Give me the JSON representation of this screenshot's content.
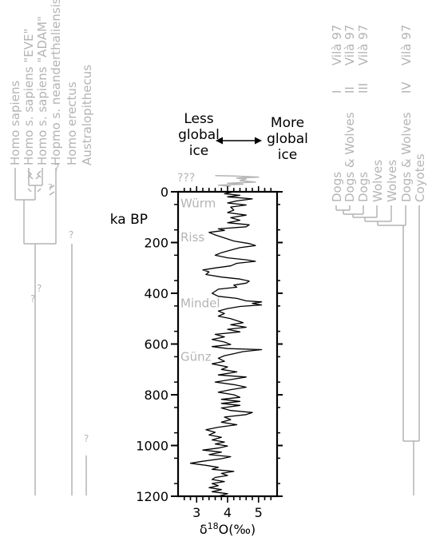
{
  "hominin_tree": {
    "taxa": [
      "Homo sapiens",
      "Homo s. sapiens \"EVE\"",
      "Homo s. sapiens \"ADAM\"",
      "Hopmo s. neanderthaliensis",
      "Homo erectus",
      "Australopithecus"
    ],
    "question_marks": [
      "?",
      "?",
      "?",
      "?",
      "?",
      "?"
    ],
    "color": "#b4b4b4"
  },
  "canid_tree": {
    "taxa": [
      {
        "name": "Dogs",
        "clade": "I",
        "ref": "Vilà 97"
      },
      {
        "name": "Dogs & Wolves",
        "clade": "II",
        "ref": "Vilà 97"
      },
      {
        "name": "Dogs",
        "clade": "III",
        "ref": "Vilà 97"
      },
      {
        "name": "Wolves",
        "clade": "",
        "ref": ""
      },
      {
        "name": "Wolves",
        "clade": "",
        "ref": ""
      },
      {
        "name": "Dogs & Wolves",
        "clade": "IV",
        "ref": "Vilà 97"
      },
      {
        "name": "Coyotes",
        "clade": "",
        "ref": ""
      }
    ],
    "color": "#b4b4b4"
  },
  "ice_annotation": {
    "less_lines": [
      "Less",
      "global",
      "ice"
    ],
    "more_lines": [
      "More",
      "global",
      "ice"
    ],
    "unknown_label": "???"
  },
  "chart_data": {
    "type": "line",
    "xlabel_prefix": "δ",
    "xlabel_sup": "18",
    "xlabel_suffix": "O(‰)",
    "ylabel": "ka BP",
    "xlim": [
      2.4,
      5.6
    ],
    "ylim": [
      0,
      1200
    ],
    "y_inverted": true,
    "xticks": [
      3,
      4,
      5
    ],
    "yticks": [
      0,
      200,
      400,
      600,
      800,
      1000,
      1200
    ],
    "glaciations": [
      {
        "label": "Würm",
        "age": 45
      },
      {
        "label": "Riss",
        "age": 180
      },
      {
        "label": "Mindel",
        "age": 440
      },
      {
        "label": "Günz",
        "age": 650
      }
    ],
    "series": [
      {
        "color": "#000000",
        "points": [
          [
            4.2,
            0
          ],
          [
            3.9,
            8
          ],
          [
            4.4,
            14
          ],
          [
            4.0,
            20
          ],
          [
            4.8,
            28
          ],
          [
            4.3,
            36
          ],
          [
            4.0,
            44
          ],
          [
            4.6,
            52
          ],
          [
            4.1,
            60
          ],
          [
            4.2,
            72
          ],
          [
            4.0,
            82
          ],
          [
            4.6,
            92
          ],
          [
            4.1,
            102
          ],
          [
            4.4,
            112
          ],
          [
            4.0,
            122
          ],
          [
            4.7,
            130
          ],
          [
            4.6,
            138
          ],
          [
            3.7,
            146
          ],
          [
            3.9,
            152
          ],
          [
            3.4,
            160
          ],
          [
            3.6,
            170
          ],
          [
            3.9,
            182
          ],
          [
            4.2,
            194
          ],
          [
            4.7,
            204
          ],
          [
            4.9,
            212
          ],
          [
            4.4,
            220
          ],
          [
            4.1,
            230
          ],
          [
            3.8,
            240
          ],
          [
            3.6,
            250
          ],
          [
            4.0,
            260
          ],
          [
            4.6,
            268
          ],
          [
            4.9,
            274
          ],
          [
            4.3,
            282
          ],
          [
            4.1,
            292
          ],
          [
            3.6,
            300
          ],
          [
            3.2,
            308
          ],
          [
            3.4,
            316
          ],
          [
            3.3,
            326
          ],
          [
            3.8,
            336
          ],
          [
            4.4,
            344
          ],
          [
            4.7,
            352
          ],
          [
            4.6,
            360
          ],
          [
            4.2,
            368
          ],
          [
            4.3,
            376
          ],
          [
            3.7,
            384
          ],
          [
            3.6,
            392
          ],
          [
            3.5,
            400
          ],
          [
            3.7,
            412
          ],
          [
            4.3,
            420
          ],
          [
            4.6,
            430
          ],
          [
            5.1,
            434
          ],
          [
            4.8,
            440
          ],
          [
            5.1,
            446
          ],
          [
            4.4,
            452
          ],
          [
            4.0,
            460
          ],
          [
            3.7,
            470
          ],
          [
            3.9,
            480
          ],
          [
            3.7,
            490
          ],
          [
            4.1,
            500
          ],
          [
            4.3,
            508
          ],
          [
            4.5,
            516
          ],
          [
            4.1,
            524
          ],
          [
            4.6,
            534
          ],
          [
            4.0,
            542
          ],
          [
            4.4,
            552
          ],
          [
            3.6,
            562
          ],
          [
            3.9,
            572
          ],
          [
            3.5,
            582
          ],
          [
            3.9,
            592
          ],
          [
            4.1,
            602
          ],
          [
            3.5,
            610
          ],
          [
            4.0,
            618
          ],
          [
            5.1,
            622
          ],
          [
            4.5,
            630
          ],
          [
            4.2,
            638
          ],
          [
            3.9,
            646
          ],
          [
            3.7,
            656
          ],
          [
            3.9,
            668
          ],
          [
            3.5,
            678
          ],
          [
            4.0,
            690
          ],
          [
            3.8,
            700
          ],
          [
            4.3,
            710
          ],
          [
            3.7,
            722
          ],
          [
            4.6,
            730
          ],
          [
            4.1,
            740
          ],
          [
            3.6,
            750
          ],
          [
            4.2,
            760
          ],
          [
            4.6,
            770
          ],
          [
            4.1,
            780
          ],
          [
            3.7,
            790
          ],
          [
            4.2,
            800
          ],
          [
            4.4,
            810
          ],
          [
            3.8,
            818
          ],
          [
            4.4,
            826
          ],
          [
            3.8,
            834
          ],
          [
            4.4,
            842
          ],
          [
            3.8,
            852
          ],
          [
            4.1,
            862
          ],
          [
            4.8,
            870
          ],
          [
            4.6,
            878
          ],
          [
            3.9,
            888
          ],
          [
            4.1,
            898
          ],
          [
            3.8,
            908
          ],
          [
            4.3,
            918
          ],
          [
            3.7,
            928
          ],
          [
            3.3,
            938
          ],
          [
            3.6,
            948
          ],
          [
            3.4,
            958
          ],
          [
            3.8,
            968
          ],
          [
            3.5,
            978
          ],
          [
            3.9,
            986
          ],
          [
            3.6,
            994
          ],
          [
            4.0,
            1002
          ],
          [
            3.7,
            1010
          ],
          [
            3.2,
            1018
          ],
          [
            3.8,
            1026
          ],
          [
            3.4,
            1036
          ],
          [
            4.1,
            1044
          ],
          [
            3.8,
            1052
          ],
          [
            3.2,
            1062
          ],
          [
            2.8,
            1070
          ],
          [
            3.3,
            1078
          ],
          [
            3.7,
            1086
          ],
          [
            3.5,
            1094
          ],
          [
            4.2,
            1102
          ],
          [
            3.8,
            1110
          ],
          [
            4.0,
            1118
          ],
          [
            3.6,
            1126
          ],
          [
            3.5,
            1134
          ],
          [
            3.9,
            1142
          ],
          [
            3.5,
            1150
          ],
          [
            3.7,
            1158
          ],
          [
            3.4,
            1166
          ],
          [
            3.8,
            1174
          ],
          [
            3.5,
            1182
          ],
          [
            4.0,
            1190
          ],
          [
            3.7,
            1200
          ]
        ]
      },
      {
        "color": "#b4b4b4",
        "points": [
          [
            4.1,
            -22
          ],
          [
            3.7,
            -26
          ],
          [
            4.5,
            -30
          ],
          [
            4.0,
            -34
          ],
          [
            4.9,
            -38
          ],
          [
            4.4,
            -44
          ],
          [
            4.6,
            -50
          ],
          [
            4.3,
            -54
          ],
          [
            5.0,
            -58
          ],
          [
            4.2,
            -62
          ],
          [
            3.6,
            -64
          ]
        ]
      }
    ]
  }
}
